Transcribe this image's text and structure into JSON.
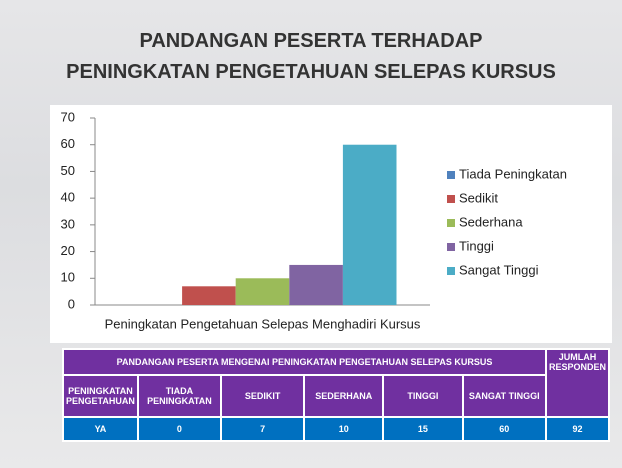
{
  "chart_data": {
    "type": "bar",
    "title": [
      "PANDANGAN PESERTA TERHADAP",
      "PENINGKATAN PENGETAHUAN SELEPAS KURSUS"
    ],
    "categories": [
      "Peningkatan Pengetahuan Selepas Menghadiri Kursus"
    ],
    "series": [
      {
        "name": "Tiada Peningkatan",
        "color": "#4f81bd",
        "values": [
          0
        ]
      },
      {
        "name": "Sedikit",
        "color": "#c0504d",
        "values": [
          7
        ]
      },
      {
        "name": "Sederhana",
        "color": "#9bbb59",
        "values": [
          10
        ]
      },
      {
        "name": "Tinggi",
        "color": "#8064a2",
        "values": [
          15
        ]
      },
      {
        "name": "Sangat Tinggi",
        "color": "#4bacc6",
        "values": [
          60
        ]
      }
    ],
    "ylim": [
      0,
      70
    ],
    "yticks": [
      0,
      10,
      20,
      30,
      40,
      50,
      60,
      70
    ],
    "grid": false,
    "legend": "right"
  },
  "table": {
    "title": "PANDANGAN PESERTA MENGENAI PENINGKATAN PENGETAHUAN SELEPAS  KURSUS",
    "total_header": "JUMLAH RESPONDEN",
    "header": [
      "PENINGKATAN PENGETAHUAN",
      "TIADA PENINGKATAN",
      "SEDIKIT",
      "SEDERHANA",
      "TINGGI",
      "SANGAT TINGGI"
    ],
    "rows": [
      [
        "YA",
        0,
        7,
        10,
        15,
        60,
        92
      ]
    ]
  }
}
